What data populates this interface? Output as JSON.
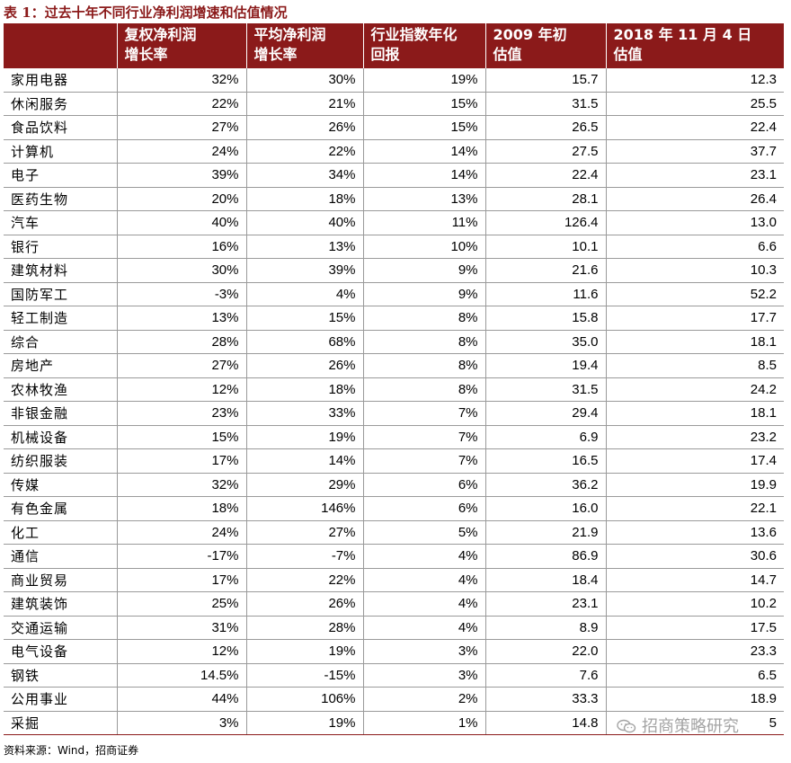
{
  "title": "表 1：过去十年不同行业净利润增速和估值情况",
  "headers": [
    "",
    "复权净利润\n增长率",
    "平均净利润\n增长率",
    "行业指数年化\n回报",
    "2009 年初\n估值",
    "2018 年 11 月 4 日\n估值"
  ],
  "rows": [
    [
      "家用电器",
      "32%",
      "30%",
      "19%",
      "15.7",
      "12.3"
    ],
    [
      "休闲服务",
      "22%",
      "21%",
      "15%",
      "31.5",
      "25.5"
    ],
    [
      "食品饮料",
      "27%",
      "26%",
      "15%",
      "26.5",
      "22.4"
    ],
    [
      "计算机",
      "24%",
      "22%",
      "14%",
      "27.5",
      "37.7"
    ],
    [
      "电子",
      "39%",
      "34%",
      "14%",
      "22.4",
      "23.1"
    ],
    [
      "医药生物",
      "20%",
      "18%",
      "13%",
      "28.1",
      "26.4"
    ],
    [
      "汽车",
      "40%",
      "40%",
      "11%",
      "126.4",
      "13.0"
    ],
    [
      "银行",
      "16%",
      "13%",
      "10%",
      "10.1",
      "6.6"
    ],
    [
      "建筑材料",
      "30%",
      "39%",
      "9%",
      "21.6",
      "10.3"
    ],
    [
      "国防军工",
      "-3%",
      "4%",
      "9%",
      "11.6",
      "52.2"
    ],
    [
      "轻工制造",
      "13%",
      "15%",
      "8%",
      "15.8",
      "17.7"
    ],
    [
      "综合",
      "28%",
      "68%",
      "8%",
      "35.0",
      "18.1"
    ],
    [
      "房地产",
      "27%",
      "26%",
      "8%",
      "19.4",
      "8.5"
    ],
    [
      "农林牧渔",
      "12%",
      "18%",
      "8%",
      "31.5",
      "24.2"
    ],
    [
      "非银金融",
      "23%",
      "33%",
      "7%",
      "29.4",
      "18.1"
    ],
    [
      "机械设备",
      "15%",
      "19%",
      "7%",
      "6.9",
      "23.2"
    ],
    [
      "纺织服装",
      "17%",
      "14%",
      "7%",
      "16.5",
      "17.4"
    ],
    [
      "传媒",
      "32%",
      "29%",
      "6%",
      "36.2",
      "19.9"
    ],
    [
      "有色金属",
      "18%",
      "146%",
      "6%",
      "16.0",
      "22.1"
    ],
    [
      "化工",
      "24%",
      "27%",
      "5%",
      "21.9",
      "13.6"
    ],
    [
      "通信",
      "-17%",
      "-7%",
      "4%",
      "86.9",
      "30.6"
    ],
    [
      "商业贸易",
      "17%",
      "22%",
      "4%",
      "18.4",
      "14.7"
    ],
    [
      "建筑装饰",
      "25%",
      "26%",
      "4%",
      "23.1",
      "10.2"
    ],
    [
      "交通运输",
      "31%",
      "28%",
      "4%",
      "8.9",
      "17.5"
    ],
    [
      "电气设备",
      "12%",
      "19%",
      "3%",
      "22.0",
      "23.3"
    ],
    [
      "钢铁",
      "14.5%",
      "-15%",
      "3%",
      "7.6",
      "6.5"
    ],
    [
      "公用事业",
      "44%",
      "106%",
      "2%",
      "33.3",
      "18.9"
    ],
    [
      "采掘",
      "3%",
      "19%",
      "1%",
      "14.8",
      "5"
    ]
  ],
  "footer": "资料来源：Wind，招商证券",
  "watermark": "招商策略研究",
  "colors": {
    "header_bg": "#8b1a1a",
    "title": "#8b1a1a",
    "watermark": "#9a9a9a"
  },
  "icons": {
    "watermark": "wechat-icon"
  }
}
